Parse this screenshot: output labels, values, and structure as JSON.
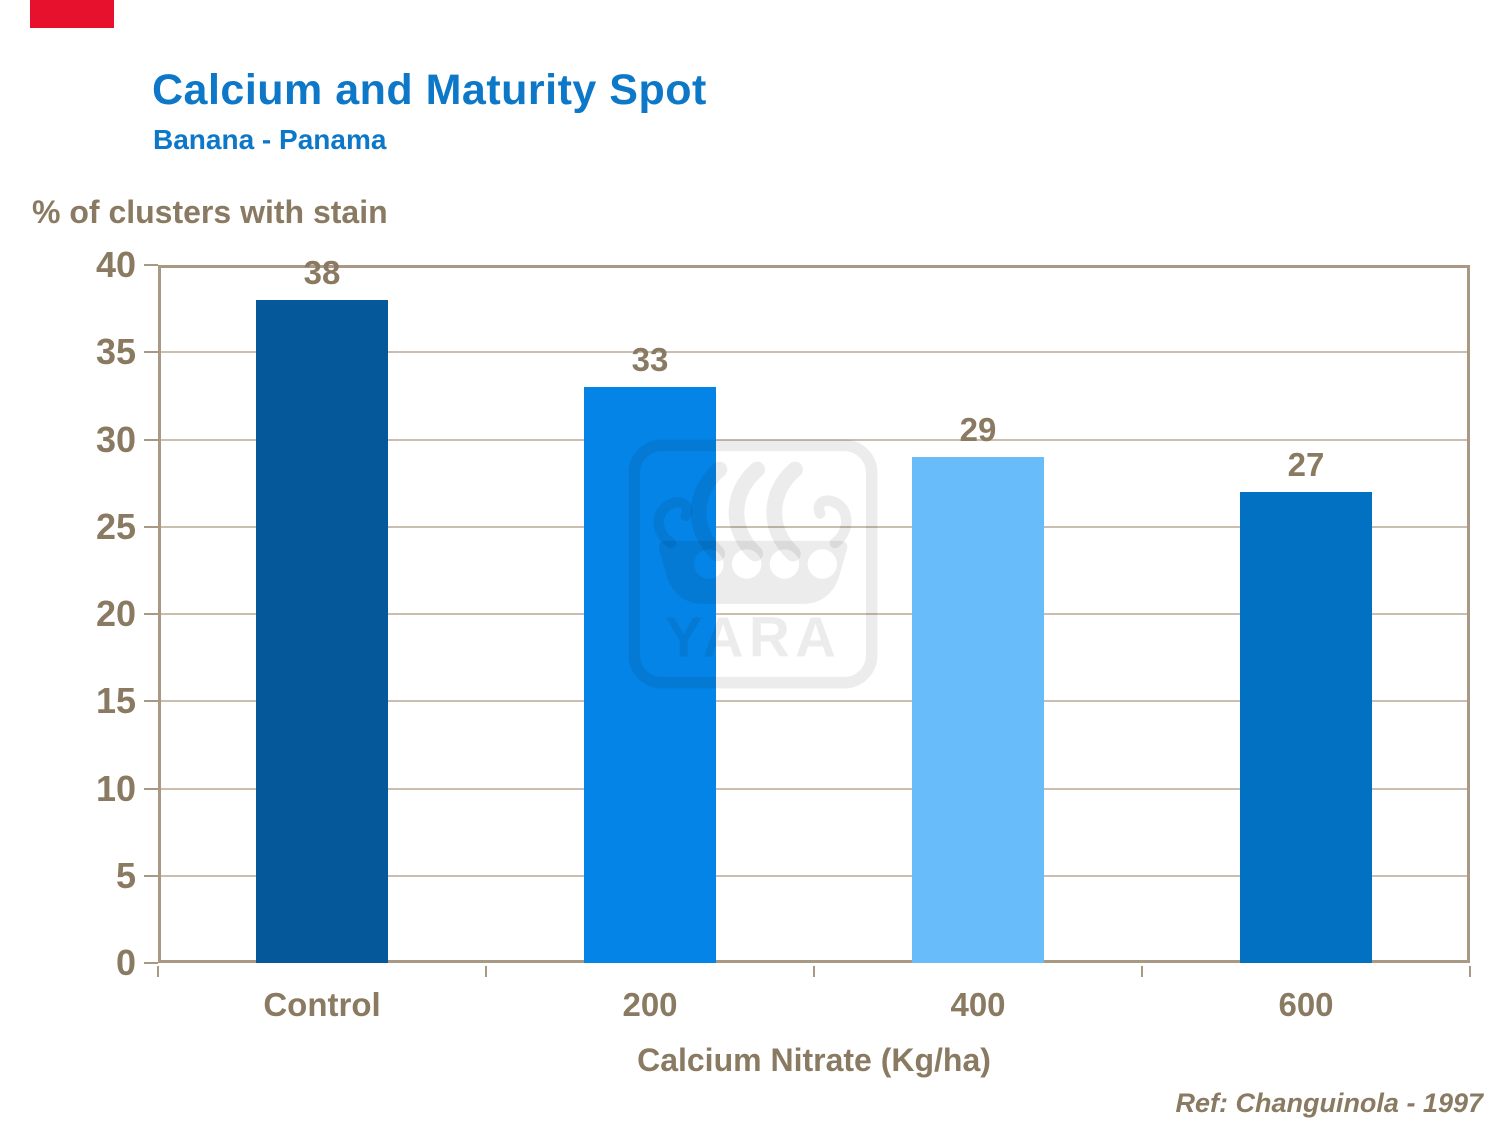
{
  "brand": {
    "logo_color": "#E8112D"
  },
  "header": {
    "title": "Calcium and Maturity Spot",
    "subtitle": "Banana - Panama",
    "title_color": "#0D78C8"
  },
  "chart_data": {
    "type": "bar",
    "title": "Calcium and Maturity Spot",
    "subtitle": "Banana - Panama",
    "ylabel": "% of clusters with stain",
    "xlabel": "Calcium Nitrate (Kg/ha)",
    "categories": [
      "Control",
      "200",
      "400",
      "600"
    ],
    "values": [
      38,
      33,
      29,
      27
    ],
    "bar_colors": [
      "#05599B",
      "#0584E7",
      "#68BCFA",
      "#0371C2"
    ],
    "ylim": [
      0,
      40
    ],
    "ytick_step": 5,
    "grid": "horizontal",
    "legend": "none",
    "text_color": "#8A7A62",
    "grid_color": "#C9BEB0",
    "axis_color": "#A79983"
  },
  "watermark": {
    "text": "YARA"
  },
  "footer": {
    "reference": "Ref: Changuinola - 1997"
  }
}
